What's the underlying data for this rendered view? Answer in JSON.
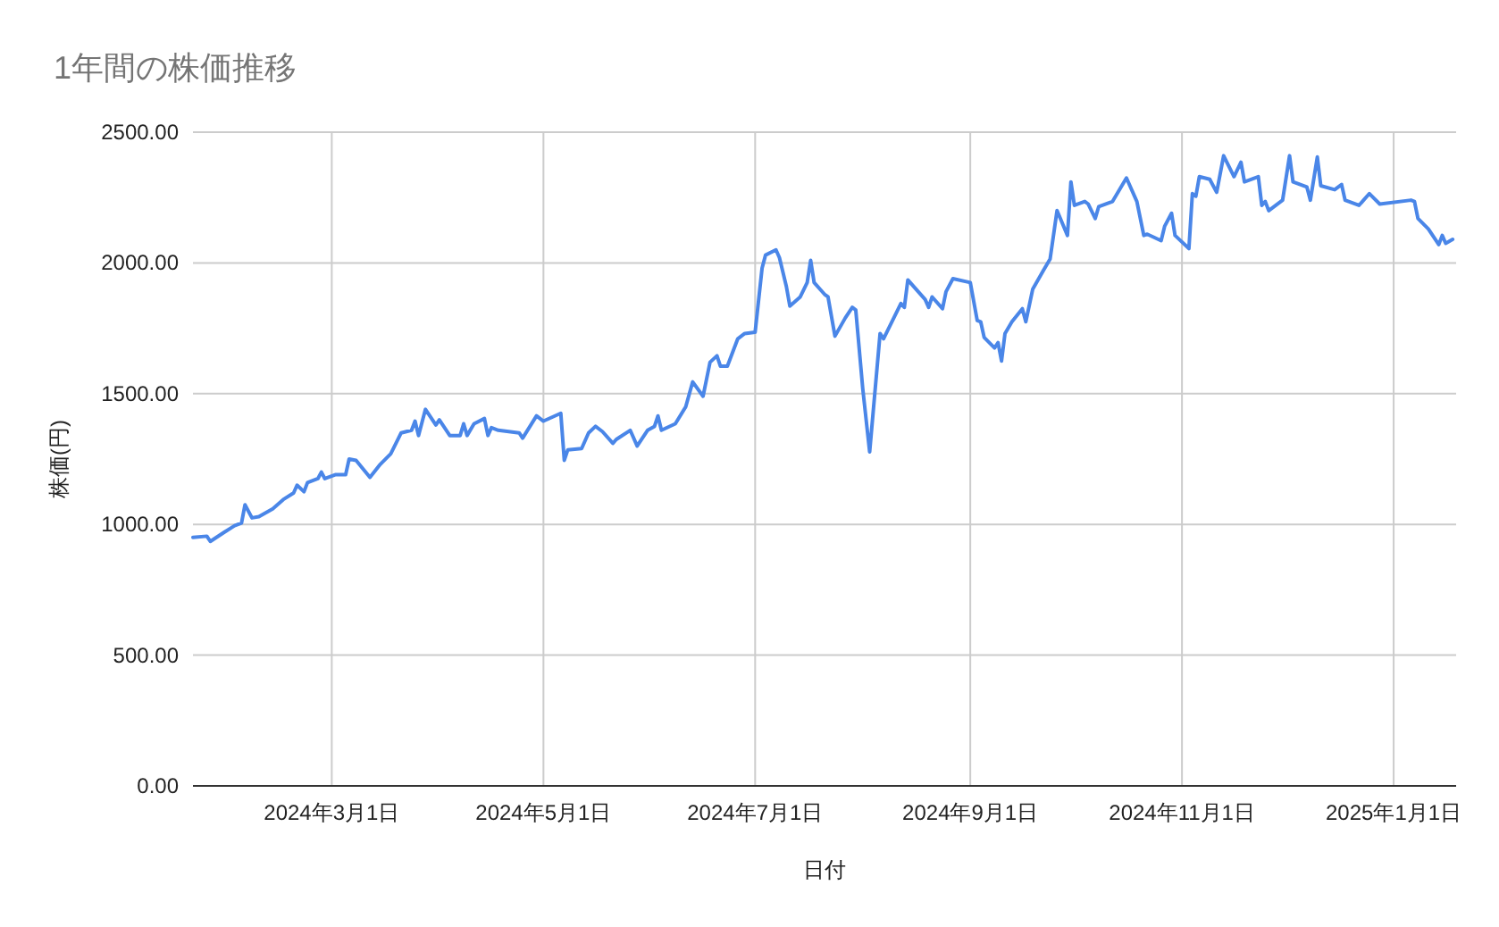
{
  "chart_data": {
    "type": "line",
    "title": "1年間の株価推移",
    "xlabel": "日付",
    "ylabel": "株価(円)",
    "xlim": [
      "2024-01-21",
      "2025-01-19"
    ],
    "ylim": [
      0,
      2500
    ],
    "xticks": [
      {
        "value": "2024-03-01",
        "label": "2024年3月1日"
      },
      {
        "value": "2024-05-01",
        "label": "2024年5月1日"
      },
      {
        "value": "2024-07-01",
        "label": "2024年7月1日"
      },
      {
        "value": "2024-09-01",
        "label": "2024年9月1日"
      },
      {
        "value": "2024-11-01",
        "label": "2024年11月1日"
      },
      {
        "value": "2025-01-01",
        "label": "2025年1月1日"
      }
    ],
    "yticks": [
      {
        "value": 0,
        "label": "0.00"
      },
      {
        "value": 500,
        "label": "500.00"
      },
      {
        "value": 1000,
        "label": "1000.00"
      },
      {
        "value": 1500,
        "label": "1500.00"
      },
      {
        "value": 2000,
        "label": "2000.00"
      },
      {
        "value": 2500,
        "label": "2500.00"
      }
    ],
    "grid": true,
    "marker": "none",
    "line_style": "solid",
    "x": [
      "2024-01-21",
      "2024-01-25",
      "2024-01-26",
      "2024-01-30",
      "2024-02-02",
      "2024-02-04",
      "2024-02-05",
      "2024-02-07",
      "2024-02-09",
      "2024-02-13",
      "2024-02-16",
      "2024-02-19",
      "2024-02-20",
      "2024-02-22",
      "2024-02-23",
      "2024-02-26",
      "2024-02-27",
      "2024-02-28",
      "2024-03-02",
      "2024-03-05",
      "2024-03-06",
      "2024-03-08",
      "2024-03-12",
      "2024-03-15",
      "2024-03-18",
      "2024-03-21",
      "2024-03-24",
      "2024-03-25",
      "2024-03-26",
      "2024-03-28",
      "2024-03-31",
      "2024-04-01",
      "2024-04-04",
      "2024-04-07",
      "2024-04-08",
      "2024-04-09",
      "2024-04-11",
      "2024-04-14",
      "2024-04-15",
      "2024-04-16",
      "2024-04-18",
      "2024-04-24",
      "2024-04-25",
      "2024-04-29",
      "2024-05-01",
      "2024-05-06",
      "2024-05-07",
      "2024-05-08",
      "2024-05-12",
      "2024-05-14",
      "2024-05-16",
      "2024-05-18",
      "2024-05-21",
      "2024-05-22",
      "2024-05-26",
      "2024-05-28",
      "2024-05-31",
      "2024-06-02",
      "2024-06-03",
      "2024-06-04",
      "2024-06-08",
      "2024-06-11",
      "2024-06-13",
      "2024-06-16",
      "2024-06-18",
      "2024-06-20",
      "2024-06-21",
      "2024-06-23",
      "2024-06-26",
      "2024-06-28",
      "2024-07-01",
      "2024-07-03",
      "2024-07-04",
      "2024-07-07",
      "2024-07-08",
      "2024-07-10",
      "2024-07-11",
      "2024-07-14",
      "2024-07-16",
      "2024-07-17",
      "2024-07-18",
      "2024-07-21",
      "2024-07-22",
      "2024-07-24",
      "2024-07-27",
      "2024-07-29",
      "2024-07-30",
      "2024-08-01",
      "2024-08-03",
      "2024-08-06",
      "2024-08-07",
      "2024-08-12",
      "2024-08-13",
      "2024-08-14",
      "2024-08-19",
      "2024-08-20",
      "2024-08-21",
      "2024-08-24",
      "2024-08-25",
      "2024-08-27",
      "2024-09-01",
      "2024-09-03",
      "2024-09-04",
      "2024-09-05",
      "2024-09-08",
      "2024-09-09",
      "2024-09-10",
      "2024-09-11",
      "2024-09-13",
      "2024-09-16",
      "2024-09-17",
      "2024-09-19",
      "2024-09-22",
      "2024-09-24",
      "2024-09-26",
      "2024-09-29",
      "2024-09-30",
      "2024-10-01",
      "2024-10-04",
      "2024-10-05",
      "2024-10-07",
      "2024-10-08",
      "2024-10-12",
      "2024-10-16",
      "2024-10-19",
      "2024-10-21",
      "2024-10-22",
      "2024-10-26",
      "2024-10-27",
      "2024-10-29",
      "2024-10-30",
      "2024-11-03",
      "2024-11-04",
      "2024-11-05",
      "2024-11-06",
      "2024-11-09",
      "2024-11-11",
      "2024-11-13",
      "2024-11-16",
      "2024-11-18",
      "2024-11-19",
      "2024-11-23",
      "2024-11-24",
      "2024-11-25",
      "2024-11-26",
      "2024-11-30",
      "2024-12-02",
      "2024-12-03",
      "2024-12-07",
      "2024-12-08",
      "2024-12-10",
      "2024-12-11",
      "2024-12-15",
      "2024-12-17",
      "2024-12-18",
      "2024-12-22",
      "2024-12-25",
      "2024-12-28",
      "2025-01-06",
      "2025-01-07",
      "2025-01-08",
      "2025-01-11",
      "2025-01-14",
      "2025-01-15",
      "2025-01-16",
      "2025-01-18"
    ],
    "series": [
      {
        "color": "#4a86e8",
        "values": [
          950,
          955,
          935,
          970,
          995,
          1005,
          1075,
          1025,
          1030,
          1060,
          1095,
          1120,
          1150,
          1125,
          1160,
          1175,
          1200,
          1175,
          1190,
          1190,
          1250,
          1245,
          1180,
          1230,
          1270,
          1350,
          1360,
          1395,
          1340,
          1440,
          1380,
          1400,
          1340,
          1340,
          1385,
          1340,
          1385,
          1405,
          1340,
          1370,
          1360,
          1350,
          1330,
          1415,
          1395,
          1425,
          1245,
          1285,
          1290,
          1350,
          1375,
          1355,
          1310,
          1325,
          1360,
          1300,
          1360,
          1375,
          1415,
          1360,
          1385,
          1450,
          1545,
          1490,
          1620,
          1645,
          1605,
          1605,
          1710,
          1730,
          1735,
          1980,
          2030,
          2050,
          2020,
          1910,
          1835,
          1870,
          1925,
          2010,
          1925,
          1880,
          1870,
          1720,
          1790,
          1830,
          1820,
          1520,
          1277,
          1730,
          1710,
          1845,
          1830,
          1935,
          1860,
          1830,
          1870,
          1825,
          1890,
          1940,
          1925,
          1780,
          1775,
          1715,
          1675,
          1695,
          1625,
          1730,
          1775,
          1825,
          1775,
          1900,
          1970,
          2015,
          2200,
          2105,
          2310,
          2220,
          2235,
          2225,
          2170,
          2215,
          2235,
          2325,
          2235,
          2105,
          2110,
          2085,
          2140,
          2190,
          2105,
          2055,
          2265,
          2255,
          2330,
          2320,
          2270,
          2410,
          2330,
          2385,
          2310,
          2330,
          2220,
          2235,
          2200,
          2240,
          2410,
          2310,
          2290,
          2240,
          2405,
          2295,
          2280,
          2300,
          2240,
          2220,
          2265,
          2225,
          2240,
          2235,
          2170,
          2130,
          2070,
          2105,
          2075,
          2090
        ]
      }
    ]
  }
}
